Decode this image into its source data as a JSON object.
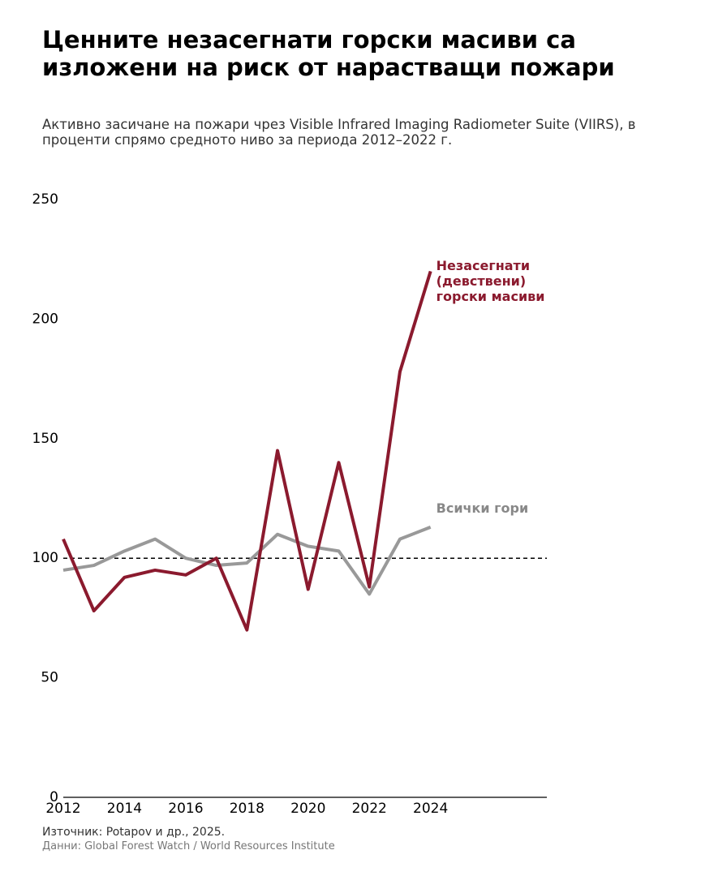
{
  "chart_data": {
    "type": "line",
    "title": "Ценните незасегнати горски масиви са изложени на риск от нарастващи пожари",
    "subtitle": "Активно засичане на пожари чрез Visible Infrared Imaging Radiometer Suite (VIIRS), в проценти спрямо средното ниво за периода 2012–2022 г.",
    "x": [
      2012,
      2013,
      2014,
      2015,
      2016,
      2017,
      2018,
      2019,
      2020,
      2021,
      2022,
      2023,
      2024
    ],
    "series": [
      {
        "name": "Незасегнати (девствени) горски масиви",
        "color": "#8b1a2e",
        "values": [
          108,
          78,
          92,
          95,
          93,
          100,
          70,
          145,
          87,
          140,
          88,
          178,
          220
        ]
      },
      {
        "name": "Всички гори",
        "color": "#999999",
        "label_color": "#888888",
        "values": [
          95,
          97,
          103,
          108,
          100,
          97,
          98,
          110,
          105,
          103,
          85,
          108,
          113
        ]
      }
    ],
    "reference_line": 100,
    "xlim": [
      2012,
      2027.8
    ],
    "xticks": [
      2012,
      2014,
      2016,
      2018,
      2020,
      2022,
      2024
    ],
    "ylim": [
      0,
      250
    ],
    "yticks": [
      0,
      50,
      100,
      150,
      200,
      250
    ],
    "grid": false,
    "source": "Източник: Potapov и др., 2025.",
    "data_source": "Данни: Global Forest Watch / World Resources Institute"
  }
}
